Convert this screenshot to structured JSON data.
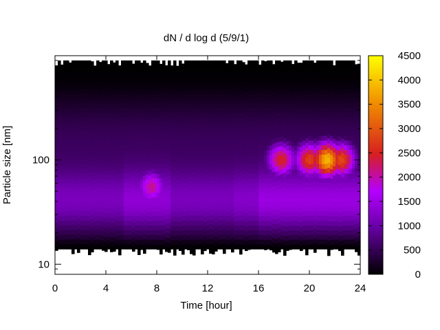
{
  "chart_data": {
    "type": "heatmap",
    "title": "dN / d log d (5/9/1)",
    "xlabel": "Time [hour]",
    "ylabel": "Particle size [nm]",
    "xlim": [
      0,
      24
    ],
    "xticks": [
      "0",
      "4",
      "8",
      "12",
      "16",
      "20",
      "24"
    ],
    "y_scale": "log",
    "ylim_nm": [
      8,
      1000
    ],
    "yticks": [
      "10",
      "100"
    ],
    "data_size_range_nm": [
      14,
      900
    ],
    "colorbar": {
      "range": [
        0,
        4500
      ],
      "ticks": [
        "0",
        "500",
        "1000",
        "1500",
        "2000",
        "2500",
        "3000",
        "3500",
        "4000",
        "4500"
      ],
      "colormap": [
        "#000000",
        "#6a00a8",
        "#b400ff",
        "#d62020",
        "#f08c00",
        "#ffff00"
      ]
    },
    "features": [
      {
        "hour": 7.6,
        "size_nm": 55,
        "peak": 2100
      },
      {
        "hour": 17.8,
        "size_nm": 100,
        "peak": 2500
      },
      {
        "hour": 20.0,
        "size_nm": 100,
        "peak": 2800
      },
      {
        "hour": 21.4,
        "size_nm": 100,
        "peak": 3900
      },
      {
        "hour": 22.5,
        "size_nm": 100,
        "peak": 2900
      }
    ]
  }
}
